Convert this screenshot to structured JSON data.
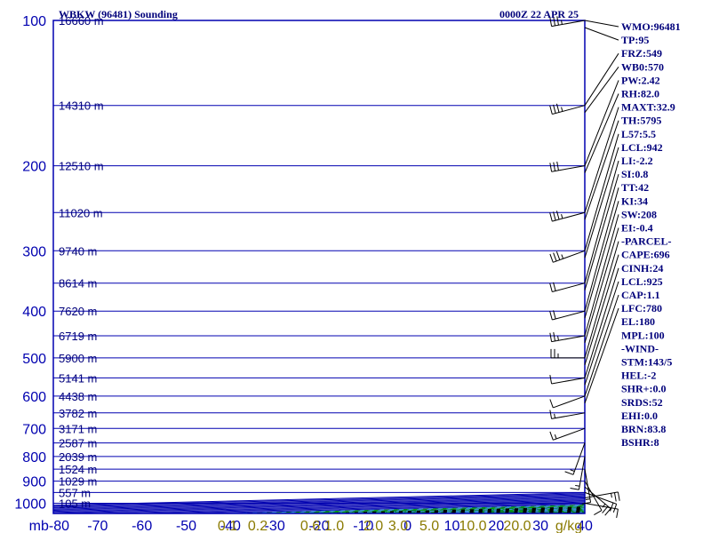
{
  "header": {
    "station": "WBKW (96481) Sounding",
    "time": "0000Z 22 APR 25"
  },
  "colors": {
    "grid": "#0000b0",
    "dry_adiabat": "#00a000",
    "moist_adiabat": "#000000",
    "mixing_ratio": "#3a8fd8",
    "temperature": "#d00000",
    "dewpoint": "#005000",
    "virtual_temp": "#0000c0",
    "text": "#00007b"
  },
  "chart_data": {
    "type": "line",
    "title": "WBKW (96481) Sounding",
    "axes": {
      "pressure_unit": "mb",
      "pressure_ticks": [
        100,
        200,
        300,
        400,
        500,
        600,
        700,
        800,
        900,
        1000
      ],
      "pressure_labels": [
        "100",
        "200",
        "300",
        "400",
        "500",
        "600",
        "700",
        "800",
        "900",
        "1000"
      ],
      "pressure_range": [
        100,
        1050
      ],
      "temperature_ticks": [
        -80,
        -70,
        -60,
        -50,
        -40,
        -30,
        -20,
        -10,
        0,
        10,
        20,
        30,
        40
      ],
      "temperature_labels": [
        "mb-80",
        "-70",
        "-60",
        "-50",
        "-40",
        "-30",
        "-20",
        "-10",
        "0",
        "10",
        "20",
        "30",
        "40"
      ],
      "mixing_ratio_labels": [
        "0.1",
        "0.2",
        "0.6",
        "1.0",
        "2.0",
        "3.0",
        "5.0",
        "10.0",
        "20.0",
        "g/kg"
      ],
      "mixing_ratio_values": [
        0.1,
        0.2,
        0.6,
        1.0,
        2.0,
        3.0,
        5.0,
        10.0,
        20.0
      ],
      "log_pressure": true,
      "skewed": true
    },
    "height_labels": [
      {
        "p": 100,
        "label": "16660 m"
      },
      {
        "p": 150,
        "label": "14310 m"
      },
      {
        "p": 200,
        "label": "12510 m"
      },
      {
        "p": 250,
        "label": "11020 m"
      },
      {
        "p": 300,
        "label": "9740 m"
      },
      {
        "p": 350,
        "label": "8614 m"
      },
      {
        "p": 400,
        "label": "7620 m"
      },
      {
        "p": 450,
        "label": "6719 m"
      },
      {
        "p": 500,
        "label": "5900 m"
      },
      {
        "p": 550,
        "label": "5141 m"
      },
      {
        "p": 600,
        "label": "4438 m"
      },
      {
        "p": 650,
        "label": "3782 m"
      },
      {
        "p": 700,
        "label": "3171 m"
      },
      {
        "p": 750,
        "label": "2587 m"
      },
      {
        "p": 800,
        "label": "2039 m"
      },
      {
        "p": 850,
        "label": "1524 m"
      },
      {
        "p": 900,
        "label": "1029 m"
      },
      {
        "p": 950,
        "label": "557 m"
      },
      {
        "p": 1000,
        "label": "105 m"
      }
    ],
    "series": [
      {
        "key": "temperature",
        "points": [
          [
            1009,
            27.5
          ],
          [
            1000,
            25.0
          ],
          [
            975,
            22.5
          ],
          [
            950,
            21.8
          ],
          [
            925,
            20.5
          ],
          [
            900,
            19.0
          ],
          [
            850,
            15.5
          ],
          [
            800,
            12.2
          ],
          [
            750,
            8.5
          ],
          [
            700,
            4.6
          ],
          [
            650,
            0.4
          ],
          [
            600,
            -4.0
          ],
          [
            550,
            -8.6
          ],
          [
            500,
            -13.7
          ],
          [
            450,
            -18.8
          ],
          [
            400,
            -24.0
          ],
          [
            350,
            -30.8
          ],
          [
            300,
            -38.7
          ],
          [
            250,
            -48.0
          ],
          [
            200,
            -58.3
          ],
          [
            150,
            -70.0
          ],
          [
            100,
            -81.0
          ]
        ]
      },
      {
        "key": "dewpoint",
        "points": [
          [
            1009,
            23.0
          ],
          [
            1000,
            22.8
          ],
          [
            975,
            21.8
          ],
          [
            950,
            19.8
          ],
          [
            925,
            16.8
          ],
          [
            900,
            14.6
          ],
          [
            850,
            11.5
          ],
          [
            800,
            8.0
          ],
          [
            750,
            4.4
          ],
          [
            700,
            0.3
          ],
          [
            650,
            -4.6
          ],
          [
            600,
            -10.0
          ],
          [
            550,
            -14.9
          ],
          [
            500,
            -20.7
          ],
          [
            450,
            -27.3
          ],
          [
            400,
            -33.0
          ],
          [
            350,
            -39.3
          ],
          [
            300,
            -48.0
          ],
          [
            250,
            -60.2
          ],
          [
            200,
            -66.3
          ],
          [
            150,
            -80.0
          ],
          [
            120,
            -88.0
          ]
        ]
      },
      {
        "key": "virtual_temp",
        "points": [
          [
            1009,
            28.5
          ],
          [
            1000,
            28.5
          ],
          [
            950,
            25.0
          ],
          [
            900,
            21.5
          ],
          [
            850,
            18.5
          ],
          [
            800,
            15.0
          ],
          [
            750,
            11.3
          ],
          [
            700,
            7.4
          ],
          [
            650,
            3.2
          ],
          [
            600,
            -1.3
          ],
          [
            550,
            -6.1
          ],
          [
            500,
            -11.3
          ],
          [
            450,
            -16.8
          ],
          [
            400,
            -22.7
          ],
          [
            350,
            -29.0
          ],
          [
            300,
            -36.3
          ],
          [
            250,
            -44.6
          ],
          [
            200,
            -54.4
          ],
          [
            150,
            -66.5
          ],
          [
            100,
            -82.0
          ]
        ]
      }
    ],
    "wind_barbs": [
      {
        "p": 1000,
        "dir": 100,
        "spd": 10
      },
      {
        "p": 975,
        "dir": 80,
        "spd": 15
      },
      {
        "p": 950,
        "dir": 110,
        "spd": 20
      },
      {
        "p": 925,
        "dir": 130,
        "spd": 15
      },
      {
        "p": 900,
        "dir": 150,
        "spd": 10
      },
      {
        "p": 850,
        "dir": 170,
        "spd": 5
      },
      {
        "p": 800,
        "dir": 190,
        "spd": 5
      },
      {
        "p": 750,
        "dir": 200,
        "spd": 5
      },
      {
        "p": 700,
        "dir": 250,
        "spd": 5
      },
      {
        "p": 650,
        "dir": 260,
        "spd": 5
      },
      {
        "p": 600,
        "dir": 250,
        "spd": 10
      },
      {
        "p": 550,
        "dir": 260,
        "spd": 10
      },
      {
        "p": 500,
        "dir": 270,
        "spd": 15
      },
      {
        "p": 450,
        "dir": 260,
        "spd": 15
      },
      {
        "p": 400,
        "dir": 255,
        "spd": 20
      },
      {
        "p": 350,
        "dir": 255,
        "spd": 20
      },
      {
        "p": 300,
        "dir": 250,
        "spd": 25
      },
      {
        "p": 250,
        "dir": 255,
        "spd": 25
      },
      {
        "p": 200,
        "dir": 260,
        "spd": 30
      },
      {
        "p": 150,
        "dir": 255,
        "spd": 25
      },
      {
        "p": 100,
        "dir": 260,
        "spd": 25
      }
    ]
  },
  "indices": [
    "WMO:96481",
    "TP:95",
    "FRZ:549",
    "WB0:570",
    "PW:2.42",
    "RH:82.0",
    "MAXT:32.9",
    "TH:5795",
    "L57:5.5",
    "LCL:942",
    "LI:-2.2",
    "SI:0.8",
    "TT:42",
    "KI:34",
    "SW:208",
    "EI:-0.4",
    "-PARCEL-",
    "CAPE:696",
    "CINH:24",
    "LCL:925",
    "CAP:1.1",
    "LFC:780",
    "EL:180",
    "MPL:100",
    "-WIND-",
    "STM:143/5",
    "HEL:-2",
    "SHR+:0.0",
    "SRDS:52",
    "EHI:0.0",
    "BRN:83.8",
    "BSHR:8"
  ]
}
